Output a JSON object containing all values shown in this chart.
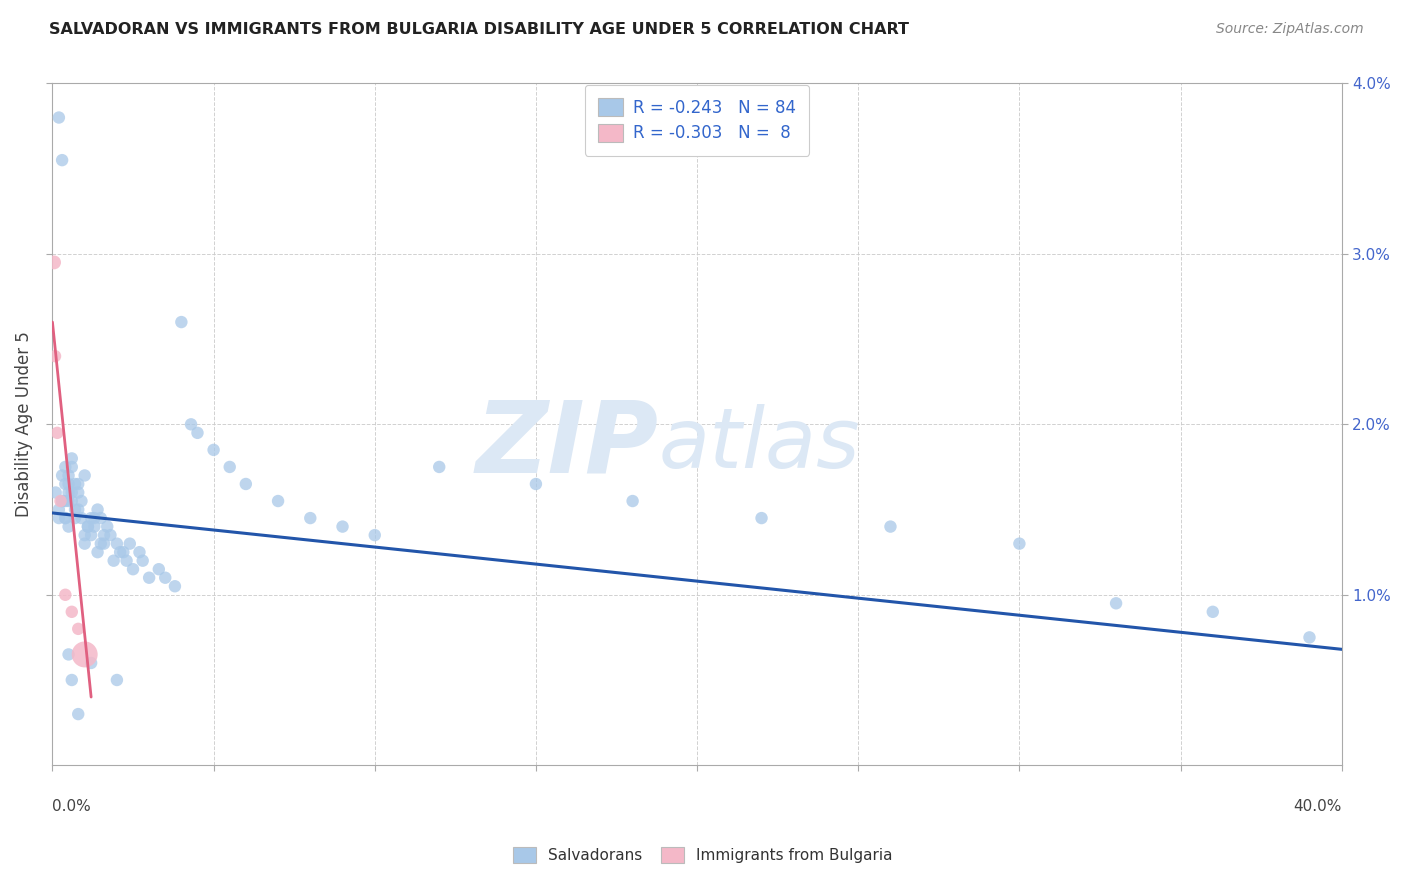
{
  "title": "SALVADORAN VS IMMIGRANTS FROM BULGARIA DISABILITY AGE UNDER 5 CORRELATION CHART",
  "source": "Source: ZipAtlas.com",
  "ylabel": "Disability Age Under 5",
  "xlim": [
    0.0,
    0.4
  ],
  "ylim": [
    0.0,
    0.04
  ],
  "r_salvadoran": -0.243,
  "n_salvadoran": 84,
  "r_bulgaria": -0.303,
  "n_bulgaria": 8,
  "blue_color": "#a8c8e8",
  "pink_color": "#f4b8c8",
  "blue_line_color": "#2255aa",
  "pink_line_color": "#e06080",
  "watermark_color": "#dce8f5",
  "sal_x": [
    0.002,
    0.003,
    0.004,
    0.002,
    0.001,
    0.003,
    0.004,
    0.005,
    0.003,
    0.002,
    0.004,
    0.005,
    0.006,
    0.004,
    0.003,
    0.005,
    0.006,
    0.007,
    0.005,
    0.004,
    0.006,
    0.007,
    0.008,
    0.006,
    0.005,
    0.007,
    0.008,
    0.009,
    0.01,
    0.008,
    0.009,
    0.01,
    0.011,
    0.012,
    0.01,
    0.011,
    0.013,
    0.012,
    0.014,
    0.013,
    0.015,
    0.016,
    0.014,
    0.015,
    0.017,
    0.016,
    0.018,
    0.02,
    0.019,
    0.021,
    0.022,
    0.024,
    0.023,
    0.025,
    0.027,
    0.028,
    0.03,
    0.033,
    0.035,
    0.038,
    0.04,
    0.043,
    0.045,
    0.05,
    0.055,
    0.06,
    0.07,
    0.08,
    0.09,
    0.1,
    0.12,
    0.15,
    0.18,
    0.22,
    0.26,
    0.3,
    0.33,
    0.36,
    0.39,
    0.005,
    0.006,
    0.008,
    0.012,
    0.02
  ],
  "sal_y": [
    0.038,
    0.0355,
    0.0155,
    0.0145,
    0.016,
    0.017,
    0.0175,
    0.0165,
    0.0155,
    0.015,
    0.0165,
    0.016,
    0.0175,
    0.0145,
    0.0155,
    0.017,
    0.018,
    0.0165,
    0.0155,
    0.0145,
    0.016,
    0.015,
    0.0165,
    0.0155,
    0.014,
    0.0145,
    0.016,
    0.0155,
    0.017,
    0.015,
    0.0145,
    0.0135,
    0.014,
    0.0145,
    0.013,
    0.014,
    0.0145,
    0.0135,
    0.015,
    0.014,
    0.0145,
    0.0135,
    0.0125,
    0.013,
    0.014,
    0.013,
    0.0135,
    0.013,
    0.012,
    0.0125,
    0.0125,
    0.013,
    0.012,
    0.0115,
    0.0125,
    0.012,
    0.011,
    0.0115,
    0.011,
    0.0105,
    0.026,
    0.02,
    0.0195,
    0.0185,
    0.0175,
    0.0165,
    0.0155,
    0.0145,
    0.014,
    0.0135,
    0.0175,
    0.0165,
    0.0155,
    0.0145,
    0.014,
    0.013,
    0.0095,
    0.009,
    0.0075,
    0.0065,
    0.005,
    0.003,
    0.006,
    0.005
  ],
  "bul_x": [
    0.0005,
    0.0008,
    0.0015,
    0.0025,
    0.004,
    0.006,
    0.008,
    0.01
  ],
  "bul_y": [
    0.0295,
    0.024,
    0.0195,
    0.0155,
    0.01,
    0.009,
    0.008,
    0.0065
  ],
  "bul_sizes": [
    100,
    80,
    80,
    80,
    80,
    80,
    80,
    350
  ],
  "sal_line_x0": 0.0,
  "sal_line_y0": 0.0148,
  "sal_line_x1": 0.4,
  "sal_line_y1": 0.0068,
  "bul_line_x0": 0.0,
  "bul_line_y0": 0.026,
  "bul_line_x1": 0.012,
  "bul_line_y1": 0.004
}
